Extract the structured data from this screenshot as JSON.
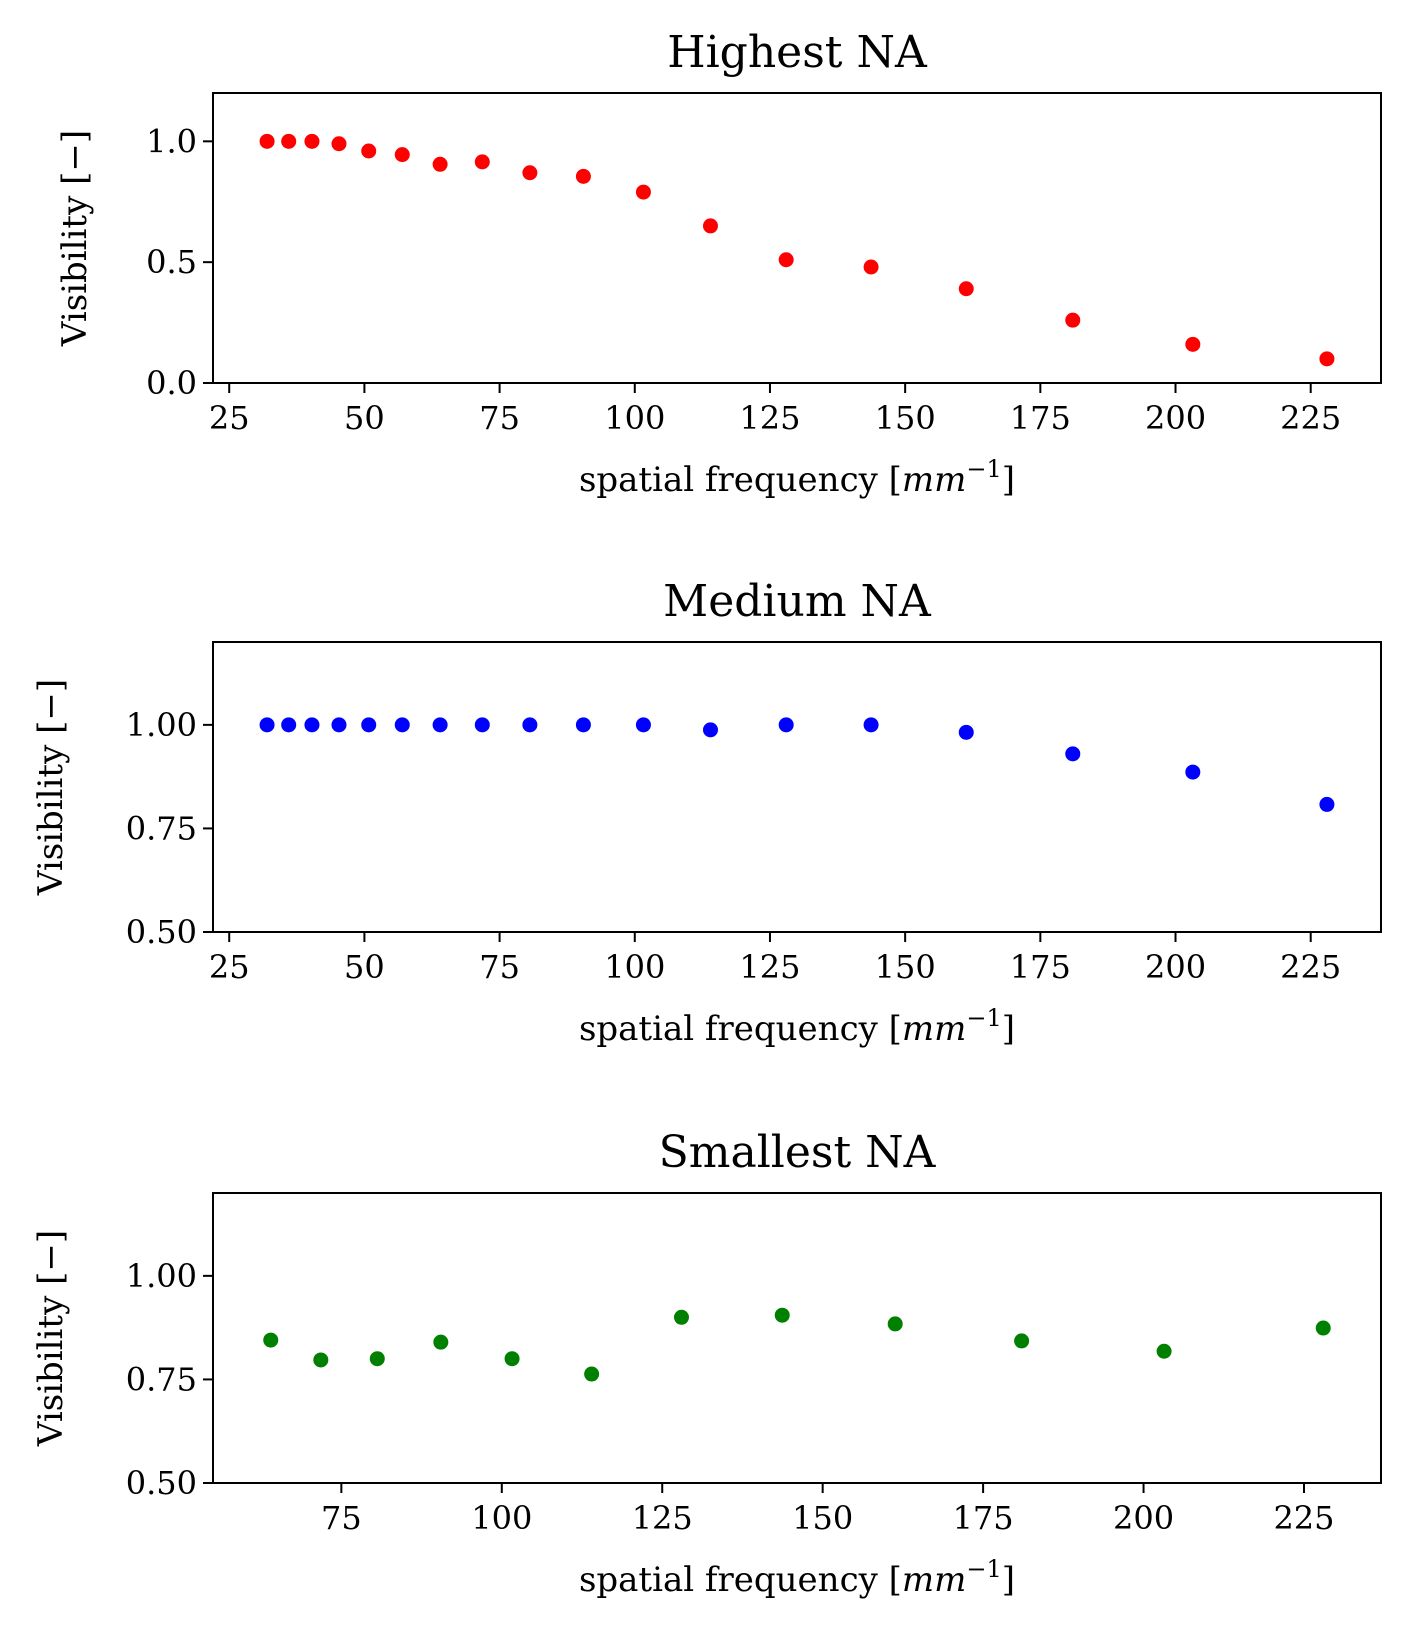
{
  "chart_data": [
    {
      "type": "scatter",
      "title": "Highest NA",
      "xlabel": "spatial frequency [",
      "xlabel_unit": "mm",
      "xlabel_exp": "−1",
      "xlabel_close": "]",
      "ylabel": "Visibility [−]",
      "xlim": [
        22,
        238
      ],
      "ylim": [
        0,
        1.2
      ],
      "xticks": [
        25,
        50,
        75,
        100,
        125,
        150,
        175,
        200,
        225
      ],
      "xtick_labels": [
        "25",
        "50",
        "75",
        "100",
        "125",
        "150",
        "175",
        "200",
        "225"
      ],
      "yticks": [
        0,
        0.5,
        1.0
      ],
      "ytick_labels": [
        "0.0",
        "0.5",
        "1.0"
      ],
      "color": "#ff0000",
      "grid": false,
      "x": [
        32,
        36,
        40.3,
        45.3,
        50.8,
        57,
        64,
        71.8,
        80.6,
        90.5,
        101.6,
        114,
        128,
        143.7,
        161.3,
        181,
        203.2,
        228
      ],
      "y": [
        1.0,
        1.0,
        1.0,
        0.99,
        0.96,
        0.945,
        0.905,
        0.915,
        0.87,
        0.855,
        0.79,
        0.65,
        0.51,
        0.48,
        0.39,
        0.26,
        0.16,
        0.1
      ]
    },
    {
      "type": "scatter",
      "title": "Medium NA",
      "xlabel": "spatial frequency [",
      "xlabel_unit": "mm",
      "xlabel_exp": "−1",
      "xlabel_close": "]",
      "ylabel": "Visibility [−]",
      "xlim": [
        22,
        238
      ],
      "ylim": [
        0.5,
        1.2
      ],
      "xticks": [
        25,
        50,
        75,
        100,
        125,
        150,
        175,
        200,
        225
      ],
      "xtick_labels": [
        "25",
        "50",
        "75",
        "100",
        "125",
        "150",
        "175",
        "200",
        "225"
      ],
      "yticks": [
        0.5,
        0.75,
        1.0
      ],
      "ytick_labels": [
        "0.50",
        "0.75",
        "1.00"
      ],
      "color": "#0000ff",
      "grid": false,
      "x": [
        32,
        36,
        40.3,
        45.3,
        50.8,
        57,
        64,
        71.8,
        80.6,
        90.5,
        101.6,
        114,
        128,
        143.7,
        161.3,
        181,
        203.2,
        228
      ],
      "y": [
        1.0,
        1.0,
        1.0,
        1.0,
        1.0,
        1.0,
        1.0,
        1.0,
        1.0,
        1.0,
        1.0,
        0.988,
        1.0,
        1.0,
        0.982,
        0.93,
        0.886,
        0.808
      ]
    },
    {
      "type": "scatter",
      "title": "Smallest NA",
      "xlabel": "spatial frequency [",
      "xlabel_unit": "mm",
      "xlabel_exp": "−1",
      "xlabel_close": "]",
      "ylabel": "Visibility [−]",
      "xlim": [
        55,
        237
      ],
      "ylim": [
        0.5,
        1.2
      ],
      "xticks": [
        75,
        100,
        125,
        150,
        175,
        200,
        225
      ],
      "xtick_labels": [
        "75",
        "100",
        "125",
        "150",
        "175",
        "200",
        "225"
      ],
      "yticks": [
        0.5,
        0.75,
        1.0
      ],
      "ytick_labels": [
        "0.50",
        "0.75",
        "1.00"
      ],
      "color": "#008000",
      "grid": false,
      "x": [
        64,
        71.8,
        80.6,
        90.5,
        101.6,
        114,
        128,
        143.7,
        161.3,
        181,
        203.2,
        228
      ],
      "y": [
        0.845,
        0.797,
        0.8,
        0.84,
        0.8,
        0.763,
        0.9,
        0.905,
        0.884,
        0.843,
        0.818,
        0.874
      ]
    }
  ]
}
